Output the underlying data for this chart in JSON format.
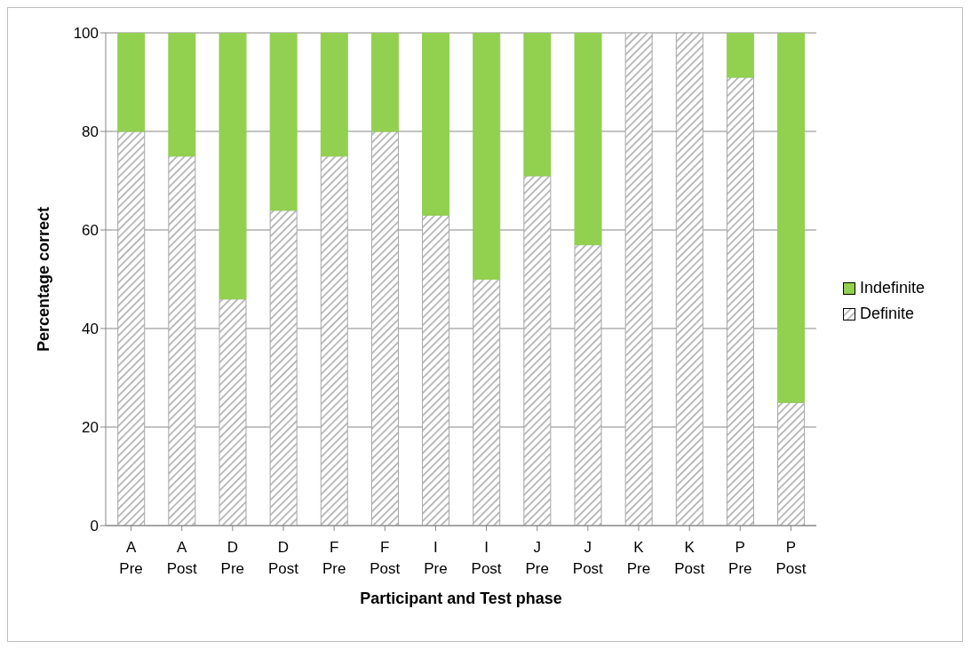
{
  "chart_data": {
    "type": "bar",
    "stacked": true,
    "xlabel": "Participant and Test phase",
    "ylabel": "Percentage correct",
    "categories": [
      "A\nPre",
      "A\nPost",
      "D\nPre",
      "D\nPost",
      "F\nPre",
      "F\nPost",
      "I\nPre",
      "I\nPost",
      "J\nPre",
      "J\nPost",
      "K\nPre",
      "K\nPost",
      "P\nPre",
      "P\nPost"
    ],
    "series": [
      {
        "name": "Definite",
        "color": "#a6a6a6",
        "values": [
          80,
          75,
          46,
          64,
          75,
          80,
          63,
          50,
          71,
          57,
          100,
          100,
          91,
          25
        ]
      },
      {
        "name": "Indefinite",
        "color": "#92d050",
        "values": [
          20,
          25,
          54,
          36,
          25,
          20,
          37,
          50,
          29,
          43,
          0,
          0,
          9,
          75
        ]
      }
    ],
    "ylim": [
      0,
      100
    ],
    "yticks": [
      0,
      20,
      40,
      60,
      80,
      100
    ],
    "grid": "y",
    "legend": "right"
  }
}
